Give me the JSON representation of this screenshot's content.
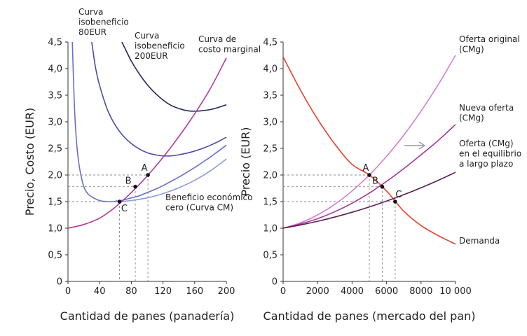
{
  "chart_data": [
    {
      "type": "line",
      "xlabel": "Cantidad de panes (panadería)",
      "ylabel": "Precio, Costo (EUR)",
      "xlim": [
        0,
        200
      ],
      "ylim": [
        0,
        4.5
      ],
      "x_ticks": [
        0,
        40,
        80,
        120,
        160,
        200
      ],
      "y_ticks": [
        "0",
        "0,5",
        "1,0",
        "1,5",
        "2,0",
        "2,5",
        "3,0",
        "3,5",
        "4,0",
        "4,5"
      ],
      "series": [
        {
          "key": "isoprofit-80",
          "color": "#6b6ec6",
          "x": [
            5.5,
            8,
            10,
            12,
            15,
            20,
            25,
            30,
            40,
            50,
            60,
            70,
            80,
            90,
            100,
            110,
            120,
            130,
            140,
            150,
            160,
            170,
            180,
            190,
            200
          ],
          "y": [
            4.5,
            3.34,
            2.79,
            2.43,
            2.1,
            1.78,
            1.65,
            1.59,
            1.52,
            1.5,
            1.5,
            1.53,
            1.57,
            1.61,
            1.67,
            1.73,
            1.8,
            1.88,
            1.96,
            2.05,
            2.14,
            2.24,
            2.34,
            2.45,
            2.56
          ]
        },
        {
          "key": "isoprofit-200",
          "color": "#4a4ea3",
          "x": [
            30,
            35,
            40,
            50,
            60,
            70,
            80,
            90,
            100,
            110,
            120,
            130,
            140,
            150,
            160,
            170,
            180,
            190,
            200
          ],
          "y": [
            4.5,
            4.0,
            3.68,
            3.22,
            2.93,
            2.73,
            2.59,
            2.49,
            2.42,
            2.38,
            2.36,
            2.36,
            2.38,
            2.41,
            2.45,
            2.5,
            2.56,
            2.63,
            2.71
          ]
        },
        {
          "key": "isoprofit-high",
          "color": "#25245c",
          "x": [
            68,
            75,
            80,
            90,
            100,
            110,
            120,
            130,
            140,
            150,
            160,
            170,
            180,
            190,
            200
          ],
          "y": [
            4.5,
            4.29,
            4.14,
            3.9,
            3.7,
            3.54,
            3.41,
            3.31,
            3.25,
            3.21,
            3.2,
            3.21,
            3.23,
            3.27,
            3.32
          ]
        },
        {
          "key": "zero-profit-ac",
          "color": "#8e9bdc",
          "x": [
            60,
            65,
            80,
            100,
            120,
            140,
            160,
            180,
            200
          ],
          "y": [
            1.53,
            1.5,
            1.52,
            1.57,
            1.65,
            1.76,
            1.9,
            2.08,
            2.3
          ]
        },
        {
          "key": "marginal-cost",
          "color": "#b23a99",
          "x": [
            0,
            20,
            40,
            60,
            80,
            100,
            120,
            140,
            160,
            180,
            200
          ],
          "y": [
            1.0,
            1.07,
            1.19,
            1.4,
            1.67,
            1.98,
            2.33,
            2.72,
            3.15,
            3.63,
            4.2
          ]
        }
      ],
      "points": [
        {
          "label": "A",
          "x": 101,
          "y": 2.0
        },
        {
          "label": "B",
          "x": 85,
          "y": 1.78
        },
        {
          "label": "C",
          "x": 65,
          "y": 1.5
        }
      ],
      "annotations": [
        {
          "key": "iso80",
          "lines": [
            "Curva",
            "isobeneficio",
            "80EUR"
          ]
        },
        {
          "key": "iso200",
          "lines": [
            "Curva",
            "isobeneficio",
            "200EUR"
          ]
        },
        {
          "key": "mc",
          "lines": [
            "Curva de",
            "costo marginal"
          ]
        },
        {
          "key": "ac",
          "lines": [
            "Beneficio económico",
            "cero (Curva CM)"
          ]
        }
      ]
    },
    {
      "type": "line",
      "xlabel": "Cantidad de panes (mercado del pan)",
      "ylabel": "Precio (EUR)",
      "xlim": [
        0,
        10000
      ],
      "ylim": [
        0,
        4.5
      ],
      "x_ticks": [
        "0",
        "2000",
        "4000",
        "6000",
        "8000",
        "10 000"
      ],
      "y_ticks": [
        "0",
        "0,5",
        "1,0",
        "1,5",
        "2,0",
        "2,5",
        "3,0",
        "3,5",
        "4,0",
        "4,5"
      ],
      "series": [
        {
          "key": "demand",
          "color": "#e8402a",
          "x": [
            0,
            1000,
            2000,
            3000,
            4000,
            5000,
            6000,
            7000,
            8000,
            9000,
            10000
          ],
          "y": [
            4.22,
            3.6,
            3.05,
            2.58,
            2.2,
            2.0,
            1.7,
            1.32,
            1.05,
            0.86,
            0.7
          ]
        },
        {
          "key": "supply-original",
          "color": "#d67ccf",
          "x": [
            0,
            1000,
            2000,
            3000,
            4000,
            5000,
            6000,
            7000,
            8000,
            9000,
            10000
          ],
          "y": [
            1.0,
            1.1,
            1.25,
            1.45,
            1.7,
            2.0,
            2.35,
            2.75,
            3.2,
            3.7,
            4.25
          ]
        },
        {
          "key": "supply-new",
          "color": "#a3379b",
          "x": [
            0,
            1000,
            2000,
            3000,
            4000,
            5000,
            6000,
            7000,
            8000,
            9000,
            10000
          ],
          "y": [
            1.0,
            1.08,
            1.18,
            1.31,
            1.47,
            1.66,
            1.88,
            2.12,
            2.38,
            2.65,
            2.95
          ]
        },
        {
          "key": "supply-longrun",
          "color": "#5a1f57",
          "x": [
            0,
            1000,
            2000,
            3000,
            4000,
            5000,
            6000,
            7000,
            8000,
            9000,
            10000
          ],
          "y": [
            1.0,
            1.06,
            1.13,
            1.21,
            1.3,
            1.4,
            1.51,
            1.63,
            1.76,
            1.9,
            2.05
          ]
        }
      ],
      "points": [
        {
          "label": "A",
          "x": 5000,
          "y": 2.0
        },
        {
          "label": "B",
          "x": 5750,
          "y": 1.78
        },
        {
          "label": "C",
          "x": 6500,
          "y": 1.5
        }
      ],
      "annotations": [
        {
          "key": "orig",
          "lines": [
            "Oferta original",
            "(CMg)"
          ]
        },
        {
          "key": "new",
          "lines": [
            "Nueva oferta",
            "(CMg)"
          ]
        },
        {
          "key": "lr",
          "lines": [
            "Oferta (CMg)",
            "en el equilibrio",
            "a largo plazo"
          ]
        },
        {
          "key": "dem",
          "lines": [
            "Demanda"
          ]
        }
      ]
    }
  ]
}
